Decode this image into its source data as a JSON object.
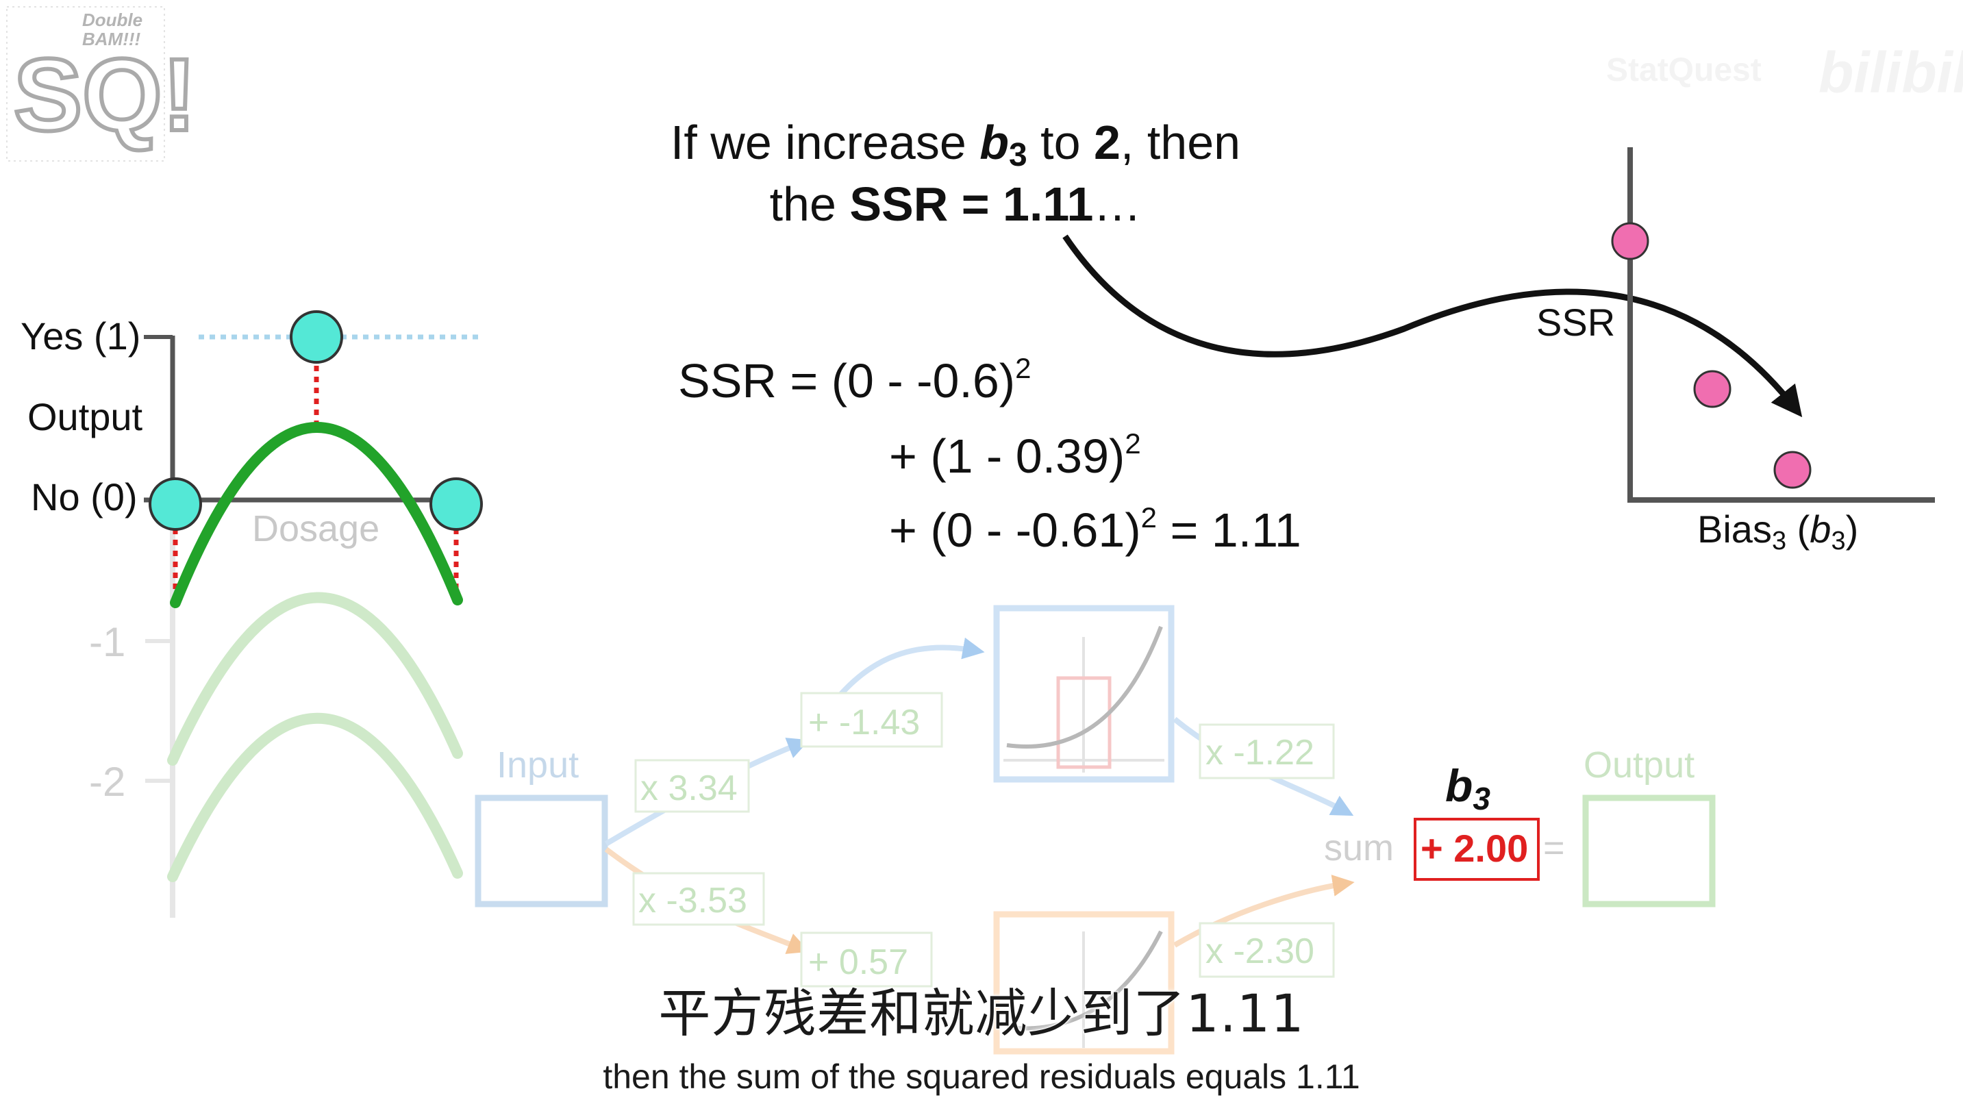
{
  "logo": {
    "top": "Double",
    "middle": "BAM!!!",
    "main": "SQ!"
  },
  "watermark": {
    "author": "StatQuest",
    "brand": "bilibili"
  },
  "headline": {
    "l1_a": "If we increase ",
    "l1_b": "b",
    "l1_sub": "3",
    "l1_c": " to ",
    "l1_d": "2",
    "l1_e": ", then",
    "l2_a": "the ",
    "l2_b": "SSR = 1.11",
    "l2_c": "…"
  },
  "equation": {
    "line1": "SSR = (0 - -0.6)",
    "line2": "+ (1 - 0.39)",
    "line3a": "+ (0 - -0.61)",
    "line3b": " = 1.11",
    "sq": "2"
  },
  "ssr_plot": {
    "ylabel": "SSR",
    "xlabel_a": "Bias",
    "xlabel_sub": "3",
    "xlabel_b": " (",
    "xlabel_c": "b",
    "xlabel_d": ")",
    "point_color": "#f06eb0"
  },
  "output_plot": {
    "yes_label": "Yes (1)",
    "output_label": "Output",
    "no_label": "No (0)",
    "x_label": "Dosage",
    "tick_neg1": "-1",
    "tick_neg2": "-2",
    "point_color": "#54e8d6",
    "curve_color": "#22a32a",
    "residual_color": "#e02020"
  },
  "network": {
    "input_label": "Input",
    "w1": "x 3.34",
    "w2": "x -3.53",
    "b1": "+ -1.43",
    "b2": "+ 0.57",
    "w3": "x -1.22",
    "w4": "x -2.30",
    "sum_label": "sum",
    "b3_label": "b",
    "b3_sub": "3",
    "b3_value": "+ 2.00",
    "equals": "=",
    "output_label": "Output",
    "blue": "#a8ccf0",
    "orange": "#f5c79a",
    "green": "#b9dfb0",
    "red": "#e02020"
  },
  "subtitles": {
    "zh": "平方残差和就减少到了1.11",
    "en": "then the sum of the squared residuals equals 1.11"
  }
}
